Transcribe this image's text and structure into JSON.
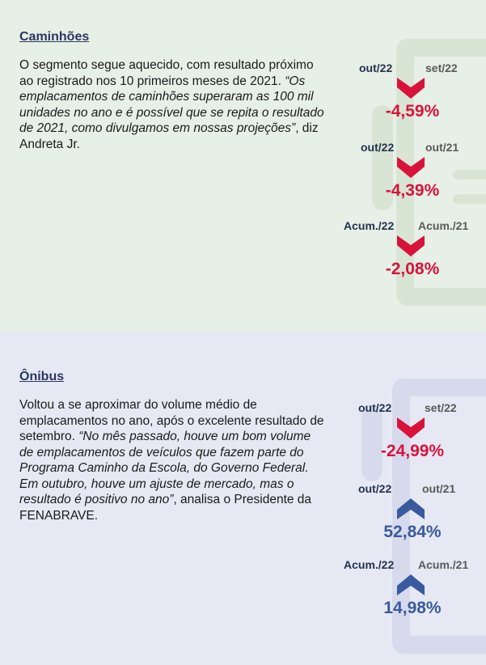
{
  "colors": {
    "down": "#d9123a",
    "up": "#3a5a9e",
    "title": "#2b3562",
    "bg_trucks": "#e7f0e6",
    "bg_buses": "#e6e9f4"
  },
  "trucks": {
    "title": "Caminhões",
    "text_plain": "O segmento segue aquecido, com resultado próximo ao registrado nos 10 primeiros meses de 2021. ",
    "text_quote": "“Os emplacamentos de caminhões superaram as 100 mil unidades no ano e é possível que se repita o resultado de 2021, como divulgamos em nossas projeções”",
    "text_tail": ", diz Andreta Jr.",
    "stats": [
      {
        "label_a": "out/22",
        "label_b": "set/22",
        "value": "-4,59%",
        "direction": "down",
        "icon": "chevron-down-icon"
      },
      {
        "label_a": "out/22",
        "label_b": "out/21",
        "value": "-4,39%",
        "direction": "down",
        "icon": "chevron-down-icon"
      },
      {
        "label_a": "Acum./22",
        "label_b": "Acum./21",
        "value": "-2,08%",
        "direction": "down",
        "icon": "chevron-down-icon"
      }
    ]
  },
  "buses": {
    "title": "Ônibus",
    "text_plain": "Voltou a se aproximar do volume médio de emplacamentos no ano, após o excelente resultado de setembro. ",
    "text_quote": "“No mês passado, houve um bom volume de emplacamentos de veículos que fazem parte do Programa Caminho da Escola, do Governo Federal. Em outubro, houve um ajuste de mercado, mas o resultado é positivo no ano”",
    "text_tail": ", analisa o Presidente da FENABRAVE.",
    "stats": [
      {
        "label_a": "out/22",
        "label_b": "set/22",
        "value": "-24,99%",
        "direction": "down",
        "icon": "chevron-down-icon"
      },
      {
        "label_a": "out/22",
        "label_b": "out/21",
        "value": "52,84%",
        "direction": "up",
        "icon": "chevron-up-icon"
      },
      {
        "label_a": "Acum./22",
        "label_b": "Acum./21",
        "value": "14,98%",
        "direction": "up",
        "icon": "chevron-up-icon"
      }
    ]
  }
}
